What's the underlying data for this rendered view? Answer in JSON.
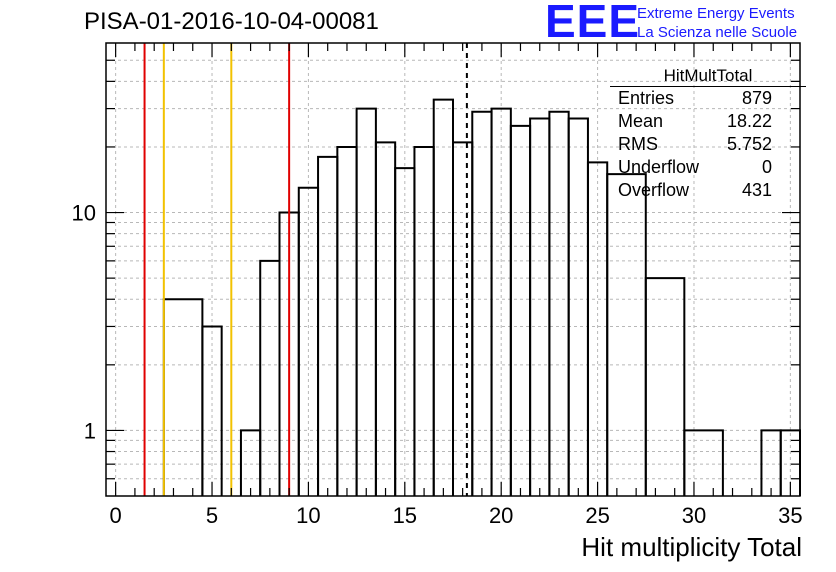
{
  "header": {
    "title": "PISA-01-2016-10-04-00081",
    "logo_mark": "EEE",
    "logo_line1": "Extreme Energy Events",
    "logo_line2": "La Scienza nelle Scuole"
  },
  "stats_box": {
    "title": "HitMultTotal",
    "rows": [
      {
        "label": "Entries",
        "value": "879"
      },
      {
        "label": "Mean",
        "value": "18.22"
      },
      {
        "label": "RMS",
        "value": "5.752"
      },
      {
        "label": "Underflow",
        "value": "0"
      },
      {
        "label": "Overflow",
        "value": "431"
      }
    ]
  },
  "chart_data": {
    "type": "bar",
    "title": "PISA-01-2016-10-04-00081",
    "xlabel": "Hit multiplicity Total",
    "ylabel": "",
    "yscale": "log",
    "xlim": [
      -0.5,
      35.5
    ],
    "ylim": [
      0.5,
      60
    ],
    "grid": true,
    "bins": [
      {
        "low": 2.5,
        "high": 4.5,
        "count": 4
      },
      {
        "low": 4.5,
        "high": 5.5,
        "count": 3
      },
      {
        "low": 6.5,
        "high": 7.5,
        "count": 1
      },
      {
        "low": 7.5,
        "high": 8.5,
        "count": 6
      },
      {
        "low": 8.5,
        "high": 9.5,
        "count": 10
      },
      {
        "low": 9.5,
        "high": 10.5,
        "count": 13
      },
      {
        "low": 10.5,
        "high": 11.5,
        "count": 18
      },
      {
        "low": 11.5,
        "high": 12.5,
        "count": 20
      },
      {
        "low": 12.5,
        "high": 13.5,
        "count": 30
      },
      {
        "low": 13.5,
        "high": 14.5,
        "count": 21
      },
      {
        "low": 14.5,
        "high": 15.5,
        "count": 16
      },
      {
        "low": 15.5,
        "high": 16.5,
        "count": 20
      },
      {
        "low": 16.5,
        "high": 17.5,
        "count": 33
      },
      {
        "low": 17.5,
        "high": 18.5,
        "count": 21
      },
      {
        "low": 18.5,
        "high": 19.5,
        "count": 29
      },
      {
        "low": 19.5,
        "high": 20.5,
        "count": 30
      },
      {
        "low": 20.5,
        "high": 21.5,
        "count": 25
      },
      {
        "low": 21.5,
        "high": 22.5,
        "count": 27
      },
      {
        "low": 22.5,
        "high": 23.5,
        "count": 29
      },
      {
        "low": 23.5,
        "high": 24.5,
        "count": 27
      },
      {
        "low": 24.5,
        "high": 25.5,
        "count": 17
      },
      {
        "low": 25.5,
        "high": 27.5,
        "count": 15
      },
      {
        "low": 27.5,
        "high": 29.5,
        "count": 5
      },
      {
        "low": 29.5,
        "high": 31.5,
        "count": 1
      },
      {
        "low": 33.5,
        "high": 34.5,
        "count": 1
      },
      {
        "low": 34.5,
        "high": 35.5,
        "count": 1
      }
    ],
    "x_ticks": [
      "0",
      "5",
      "10",
      "15",
      "20",
      "25",
      "30",
      "35"
    ],
    "y_ticks": [
      "1",
      "10"
    ],
    "vertical_lines": [
      {
        "x": 1.5,
        "color": "#e00000",
        "style": "solid"
      },
      {
        "x": 2.5,
        "color": "#f2c200",
        "style": "solid"
      },
      {
        "x": 6.0,
        "color": "#f2c200",
        "style": "solid"
      },
      {
        "x": 9.0,
        "color": "#e00000",
        "style": "solid"
      },
      {
        "x": 18.22,
        "color": "#000000",
        "style": "dashed"
      }
    ]
  },
  "colors": {
    "logo": "#1a1aff",
    "grid": "#b8b8b8"
  }
}
